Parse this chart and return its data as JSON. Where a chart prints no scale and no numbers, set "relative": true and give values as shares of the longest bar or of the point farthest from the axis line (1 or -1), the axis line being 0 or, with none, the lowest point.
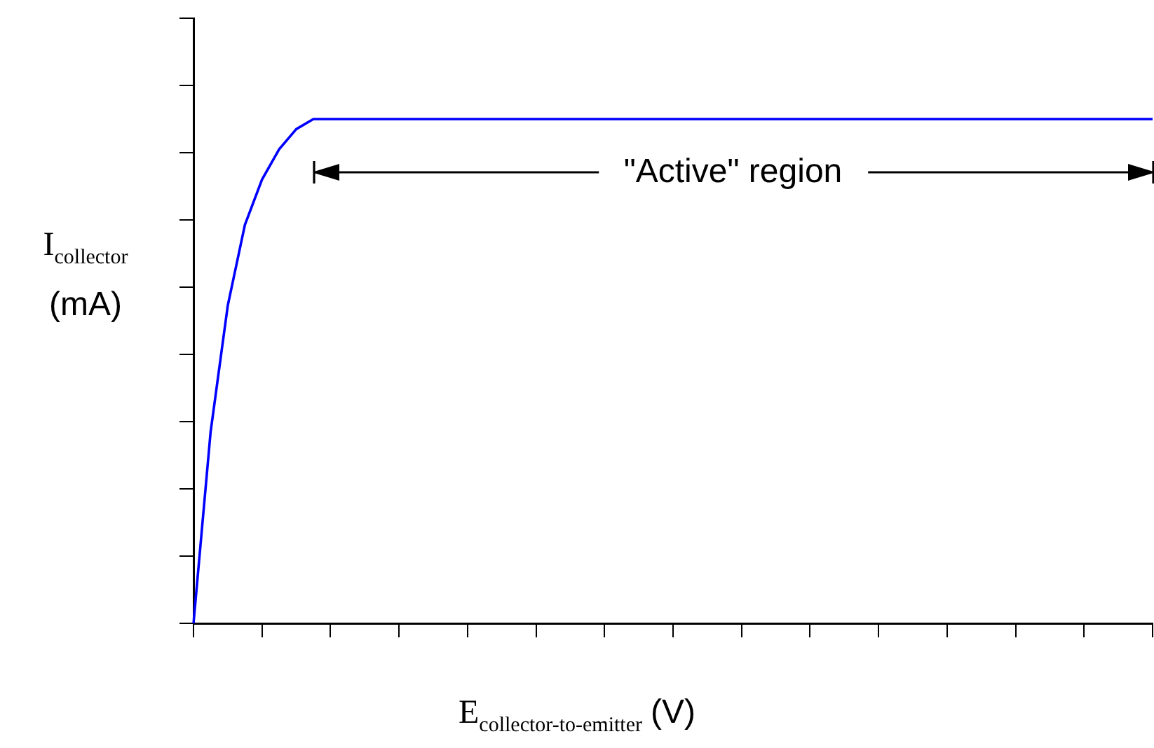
{
  "chart_data": {
    "type": "line",
    "relative": true,
    "xlabel": "E$_{collector-to-emitter}$ (V)",
    "ylabel": "I$_{collector}$ (mA)",
    "annotations": [
      "\"Active\" region"
    ],
    "legend": false,
    "grid": false,
    "marker": "none",
    "categories": [
      null,
      null,
      null,
      null,
      null,
      null,
      null,
      null,
      null,
      null,
      null,
      null,
      null,
      null,
      null,
      null,
      null,
      null,
      null,
      null,
      null,
      null,
      null,
      null,
      null,
      null,
      null,
      null,
      null,
      null,
      null,
      null,
      null,
      null,
      null,
      null,
      null,
      null,
      null,
      null,
      null,
      null,
      null,
      null,
      null,
      null,
      null,
      null,
      null,
      null,
      null,
      null,
      null,
      null,
      null,
      null,
      null
    ],
    "series": [
      {
        "color": "#0000ff",
        "values": [
          0,
          0.38,
          0.63,
          0.79,
          0.88,
          0.94,
          0.98,
          1,
          1,
          1,
          1,
          1,
          1,
          1,
          1,
          1,
          1,
          1,
          1,
          1,
          1,
          1,
          1,
          1,
          1,
          1,
          1,
          1,
          1,
          1,
          1,
          1,
          1,
          1,
          1,
          1,
          1,
          1,
          1,
          1,
          1,
          1,
          1,
          1,
          1,
          1,
          1,
          1,
          1,
          1,
          1,
          1,
          1,
          1,
          1,
          1,
          1
        ]
      }
    ]
  }
}
